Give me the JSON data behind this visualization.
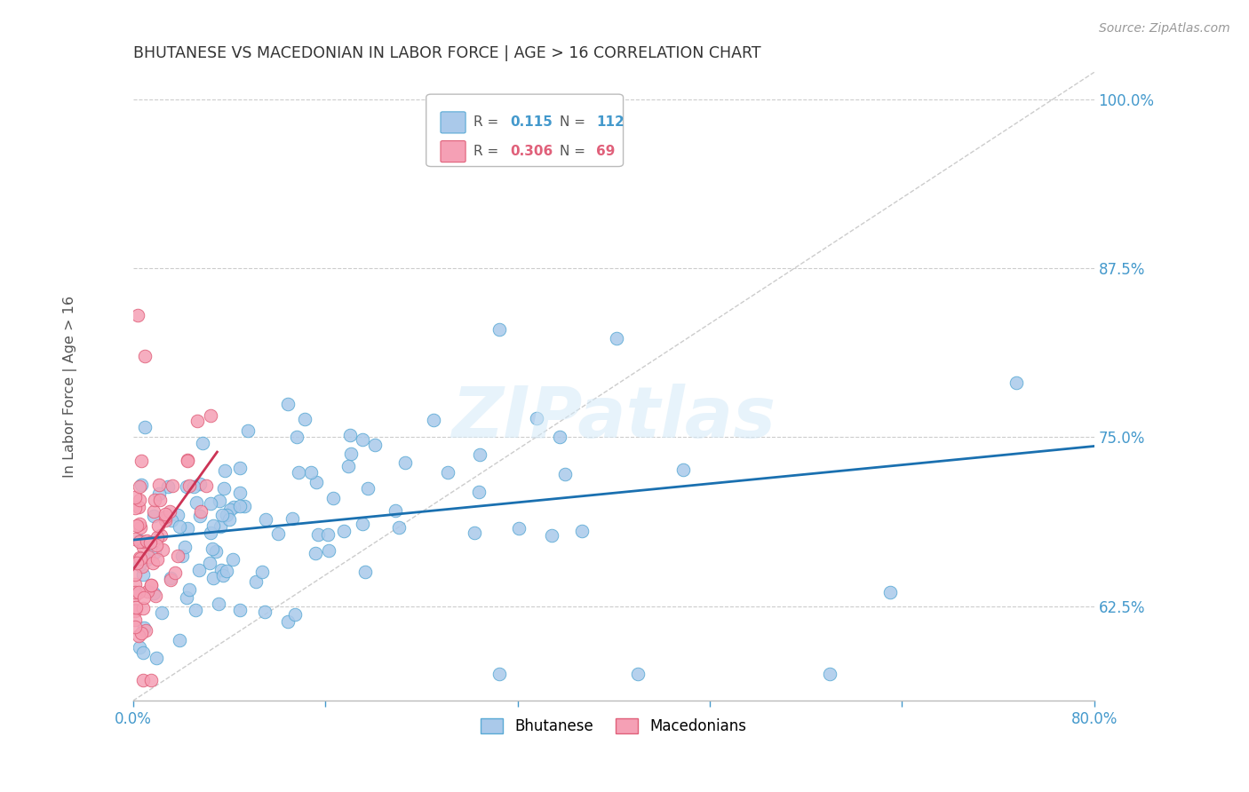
{
  "title": "BHUTANESE VS MACEDONIAN IN LABOR FORCE | AGE > 16 CORRELATION CHART",
  "source": "Source: ZipAtlas.com",
  "ylabel": "In Labor Force | Age > 16",
  "xlim": [
    0.0,
    0.8
  ],
  "ylim": [
    0.555,
    1.02
  ],
  "yticks": [
    0.625,
    0.75,
    0.875,
    1.0
  ],
  "yticklabels": [
    "62.5%",
    "75.0%",
    "87.5%",
    "100.0%"
  ],
  "blue_color": "#aac9ea",
  "blue_edge": "#5aaad5",
  "pink_color": "#f5a0b5",
  "pink_edge": "#e0607a",
  "trend_blue_color": "#1a70b0",
  "trend_pink_color": "#cc3355",
  "diag_color": "#cccccc",
  "axis_color": "#4499cc",
  "watermark": "ZIPatlas",
  "legend_R_blue": "0.115",
  "legend_N_blue": "112",
  "legend_R_pink": "0.306",
  "legend_N_pink": "69"
}
